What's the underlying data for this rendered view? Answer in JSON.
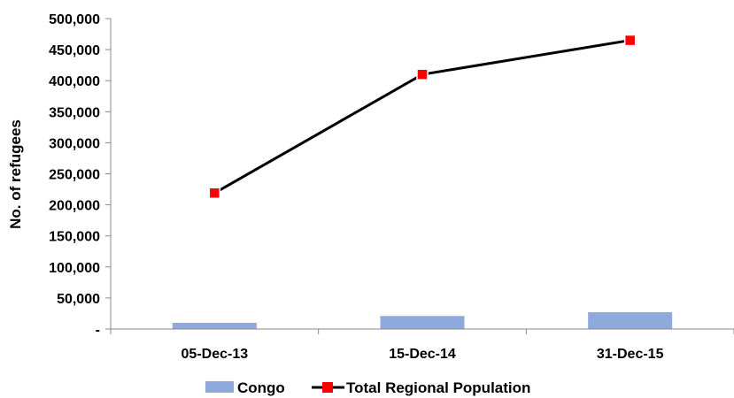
{
  "chart_data": {
    "type": "bar",
    "categories": [
      "05-Dec-13",
      "15-Dec-14",
      "31-Dec-15"
    ],
    "series": [
      {
        "name": "Congo",
        "type": "bar",
        "color": "#8EA9DB",
        "values": [
          10000,
          21000,
          27000
        ]
      },
      {
        "name": "Total Regional Population",
        "type": "line",
        "color": "#000000",
        "marker_color": "#FF0000",
        "values": [
          219000,
          410000,
          465000
        ]
      }
    ],
    "title": "",
    "xlabel": "",
    "ylabel": "No. of refugees",
    "ylim": [
      0,
      500000
    ],
    "yticks": [
      {
        "value": 0,
        "label": "-"
      },
      {
        "value": 50000,
        "label": "50,000"
      },
      {
        "value": 100000,
        "label": "100,000"
      },
      {
        "value": 150000,
        "label": "150,000"
      },
      {
        "value": 200000,
        "label": "200,000"
      },
      {
        "value": 250000,
        "label": "250,000"
      },
      {
        "value": 300000,
        "label": "300,000"
      },
      {
        "value": 350000,
        "label": "350,000"
      },
      {
        "value": 400000,
        "label": "400,000"
      },
      {
        "value": 450000,
        "label": "450,000"
      },
      {
        "value": 500000,
        "label": "500,000"
      }
    ],
    "grid": false,
    "legend": "bottom"
  }
}
